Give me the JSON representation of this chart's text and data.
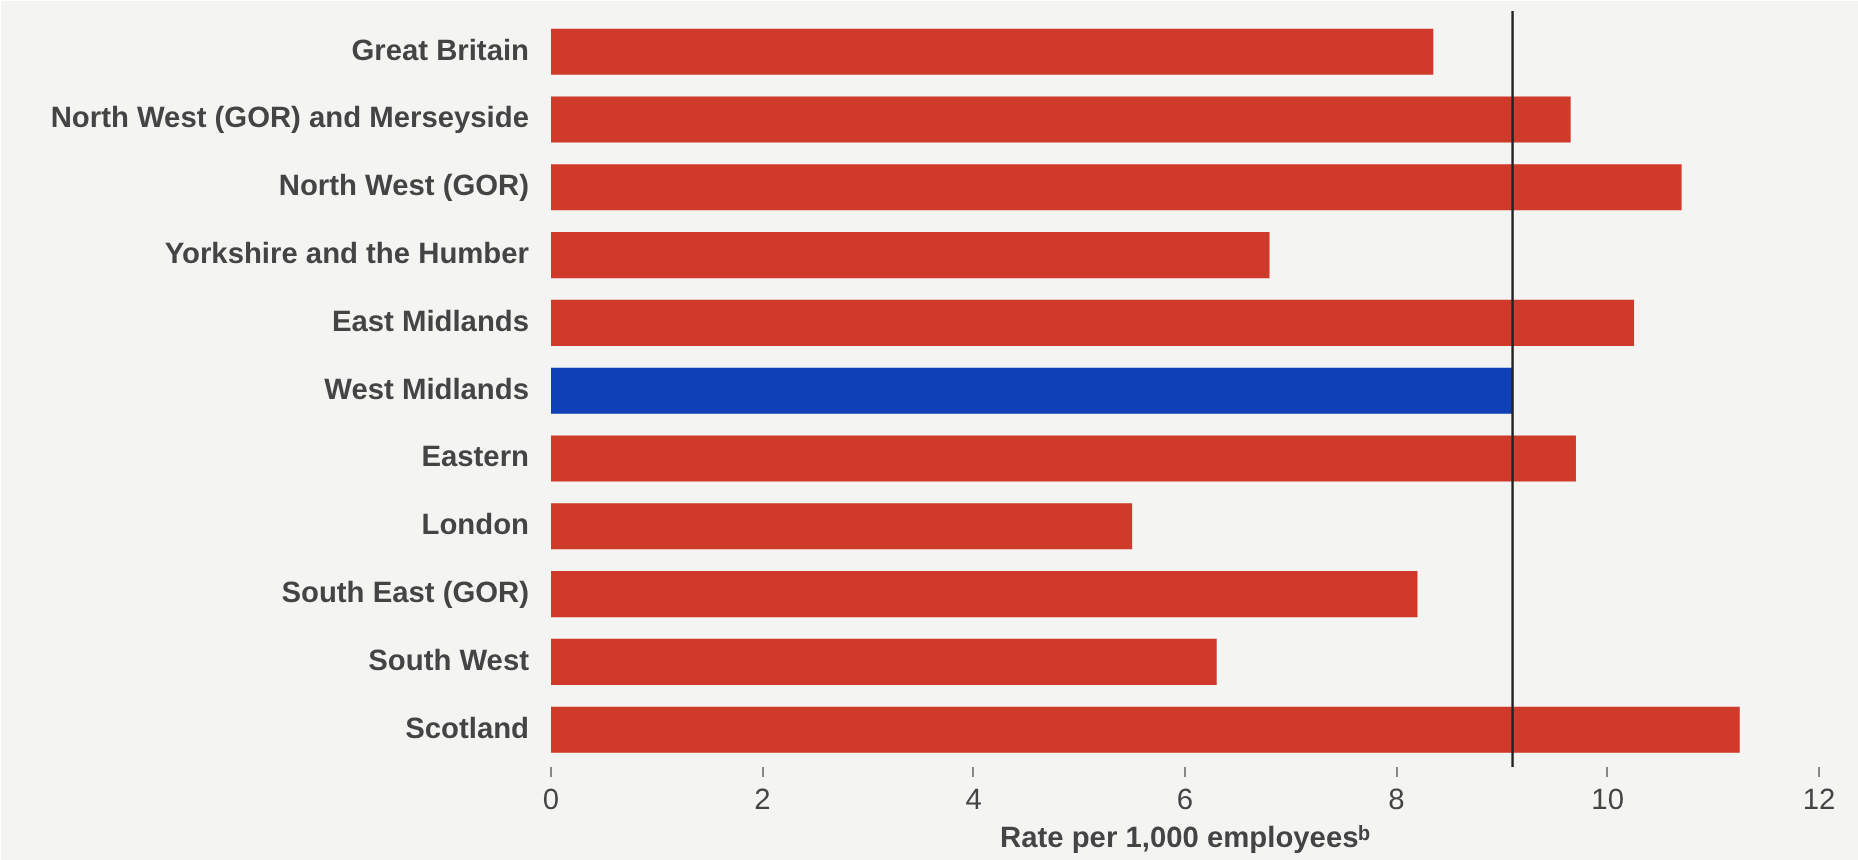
{
  "chart_data": {
    "type": "bar",
    "orientation": "horizontal",
    "categories": [
      "Great Britain",
      "North West (GOR) and Merseyside",
      "North West (GOR)",
      "Yorkshire and the Humber",
      "East Midlands",
      "West Midlands",
      "Eastern",
      "London",
      "South East (GOR)",
      "South West",
      "Scotland"
    ],
    "values": [
      8.35,
      9.65,
      10.7,
      6.8,
      10.25,
      9.1,
      9.7,
      5.5,
      8.2,
      6.3,
      11.25
    ],
    "colors": [
      "#d03a2a",
      "#d03a2a",
      "#d03a2a",
      "#d03a2a",
      "#d03a2a",
      "#1040b8",
      "#d03a2a",
      "#d03a2a",
      "#d03a2a",
      "#d03a2a",
      "#d03a2a"
    ],
    "xlabel": "Rate per 1,000 employeesᵇ",
    "xlim": [
      0,
      12
    ],
    "xticks": [
      0,
      2,
      4,
      6,
      8,
      10,
      12
    ],
    "ref_lines": [
      {
        "axis": "x",
        "value": 9.1,
        "color": "#222222"
      }
    ],
    "grid": false
  }
}
